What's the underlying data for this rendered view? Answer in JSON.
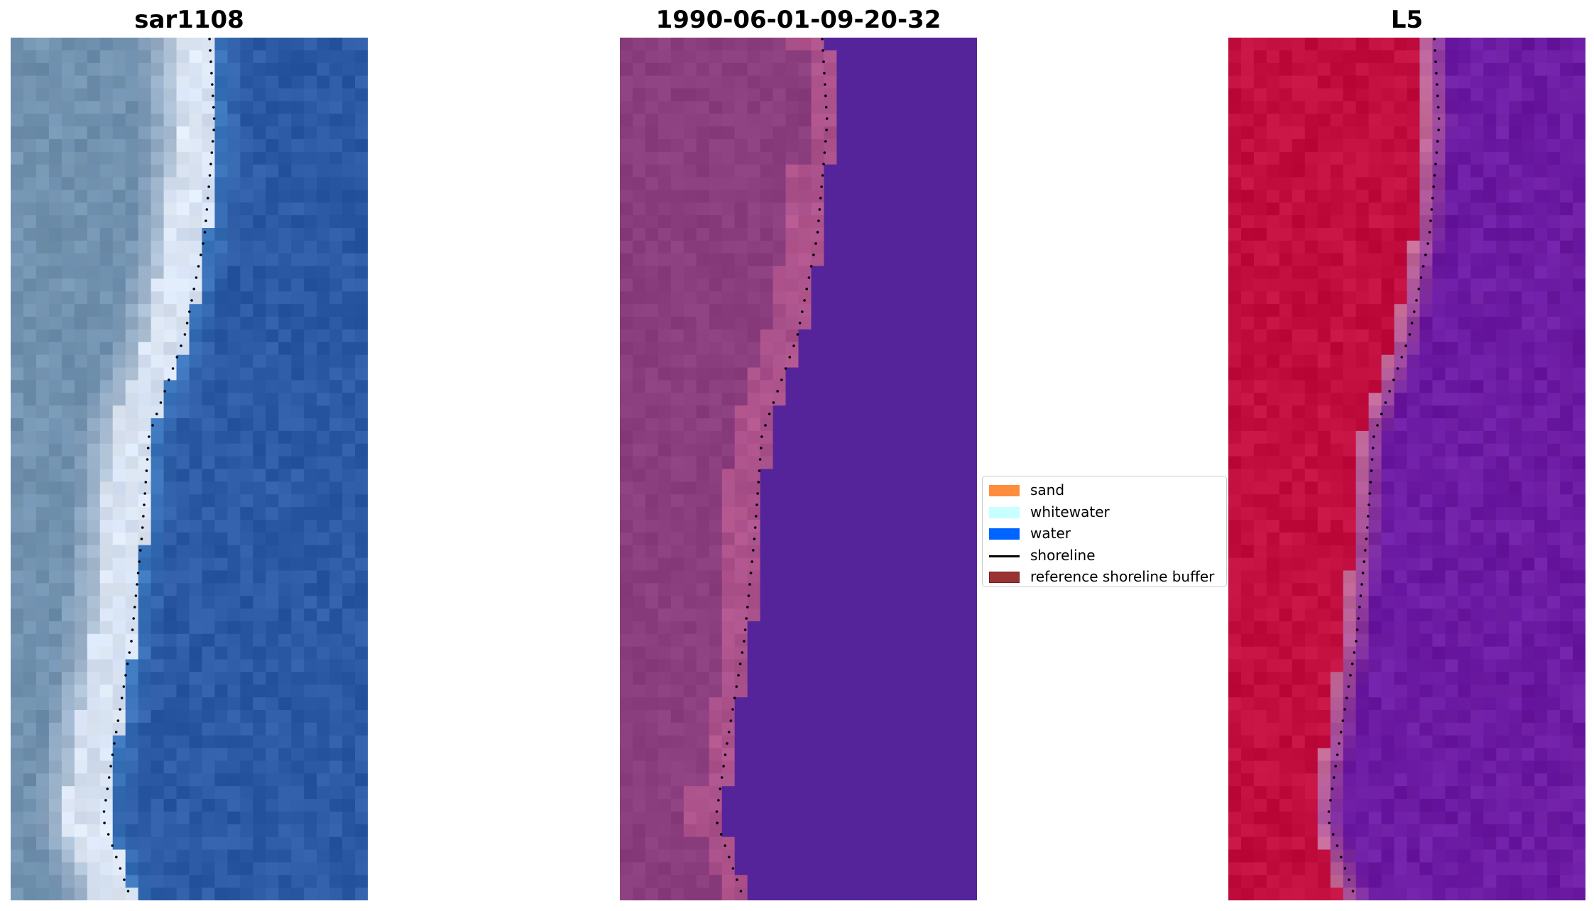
{
  "panels": [
    {
      "title": "sar1108"
    },
    {
      "title": "1990-06-01-09-20-32"
    },
    {
      "title": "L5"
    }
  ],
  "legend": {
    "items": [
      {
        "label": "sand",
        "kind": "patch",
        "color": "#ff8c3c",
        "edge": "#ff8c3c"
      },
      {
        "label": "whitewater",
        "kind": "patch",
        "color": "#c8ffff",
        "edge": "#c8ffff"
      },
      {
        "label": "water",
        "kind": "patch",
        "color": "#0064ff",
        "edge": "#0064ff"
      },
      {
        "label": "shoreline",
        "kind": "line",
        "color": "#000000"
      },
      {
        "label": "reference shoreline buffer",
        "kind": "patch",
        "color": "#993333",
        "edge": "#7a1f1f"
      }
    ]
  },
  "colors": {
    "rgb_sand": "#6f8fae",
    "rgb_whitewater": "#dfe8f4",
    "rgb_water": "#2d5aa4",
    "classified_sand": "#8a3e7d",
    "classified_buffer": "#b5578f",
    "classified_water": "#55249a",
    "index_land": "#c10e3e",
    "index_water": "#6b1aa0",
    "shoreline_dots": "#000000"
  }
}
